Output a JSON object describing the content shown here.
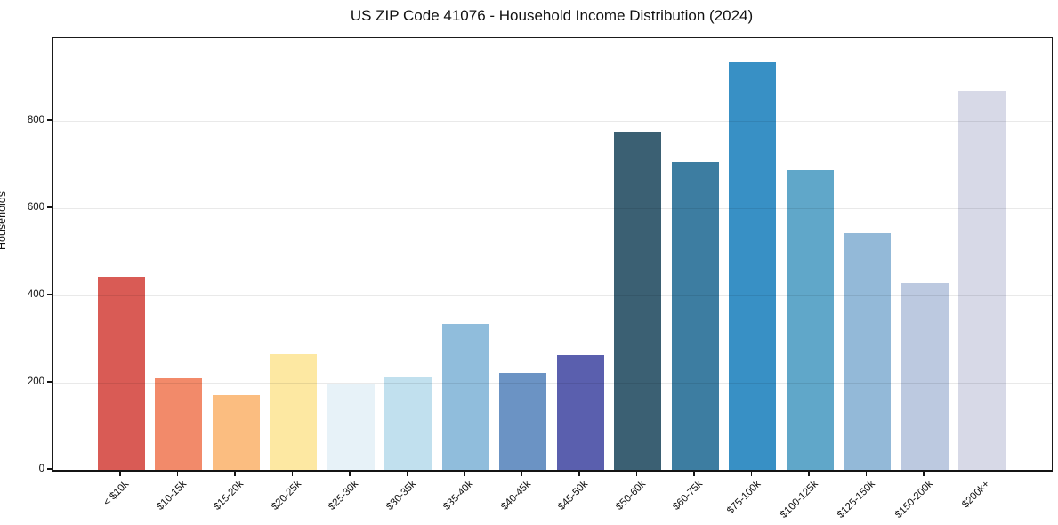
{
  "figure": {
    "title": "US ZIP Code 41076 - Household Income Distribution (2024)"
  },
  "chart_data": {
    "type": "bar",
    "title": "US ZIP Code 41076 - Household Income Distribution (2024)",
    "xlabel": "",
    "ylabel": "Households",
    "categories": [
      "< $10k",
      "$10-15k",
      "$15-20k",
      "$20-25k",
      "$25-30k",
      "$30-35k",
      "$35-40k",
      "$40-45k",
      "$45-50k",
      "$50-60k",
      "$60-75k",
      "$75-100k",
      "$100-125k",
      "$125-150k",
      "$150-200k",
      "$200k+"
    ],
    "values": [
      443,
      210,
      171,
      266,
      199,
      213,
      335,
      223,
      264,
      775,
      706,
      936,
      688,
      543,
      429,
      870
    ],
    "bar_colors": [
      "#d95b55",
      "#f28a6a",
      "#fbbd80",
      "#fde8a2",
      "#e7f2f8",
      "#c1e0ee",
      "#90bddc",
      "#6b93c4",
      "#5a5fae",
      "#3b6073",
      "#3d7da1",
      "#3890c5",
      "#60a7c9",
      "#93b9d8",
      "#bcc9e0",
      "#d7d9e7"
    ],
    "ylim": [
      0,
      990
    ],
    "yticks": [
      0,
      200,
      400,
      600,
      800
    ],
    "grid": "horizontal-only, light gray, drawn over bars",
    "legend": "none",
    "background_color": "#ffffff",
    "axis_color": "#1a1a1a",
    "x_tick_label_rotation_deg": 45
  }
}
